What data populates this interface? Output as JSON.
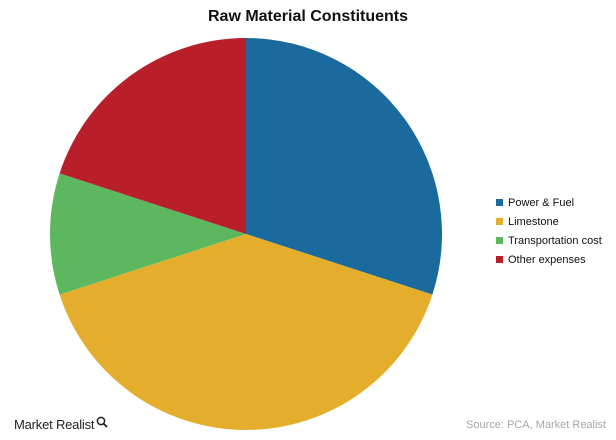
{
  "chart_data": {
    "type": "pie",
    "title": "Raw Material Constituents",
    "categories": [
      "Power & Fuel",
      "Limestone",
      "Transportation cost",
      "Other expenses"
    ],
    "values": [
      30,
      40,
      10,
      20
    ],
    "colors": [
      "#1b6a9d",
      "#e4ae2c",
      "#5db75f",
      "#b91f2a"
    ],
    "legend_position": "right",
    "start_angle": "12 o'clock, clockwise"
  },
  "brand": {
    "name": "Market Realist",
    "icon": "magnifier-icon"
  },
  "source_text": "Source: PCA, Market Realist"
}
